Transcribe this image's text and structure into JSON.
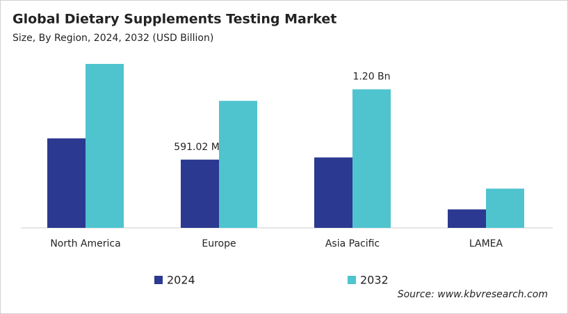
{
  "chart_data": {
    "type": "bar",
    "title": "Global Dietary Supplements Testing Market",
    "subtitle": "Size, By Region, 2024, 2032 (USD Billion)",
    "source": "Source: www.kbvresearch.com",
    "categories": [
      "North America",
      "Europe",
      "Asia Pacific",
      "LAMEA"
    ],
    "series": [
      {
        "name": "2024",
        "color": "#2b3990",
        "values": [
          0.775,
          0.59102,
          0.61,
          0.16
        ],
        "value_labels": [
          null,
          "591.02 Mn",
          null,
          null
        ]
      },
      {
        "name": "2032",
        "color": "#4fc4cf",
        "values": [
          1.42,
          1.1,
          1.2,
          0.34
        ],
        "value_labels": [
          null,
          null,
          "1.20 Bn",
          null
        ]
      }
    ]
  }
}
